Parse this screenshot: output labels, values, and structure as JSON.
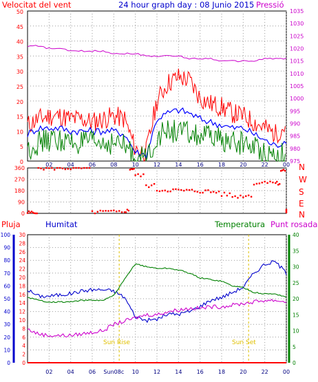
{
  "chart_data": [
    {
      "type": "line",
      "title": "24 hour graph day : 08 Junio 2015",
      "left_label": "Velocitat del vent",
      "right_label": "Pressió",
      "x_ticks": [
        "02",
        "04",
        "06",
        "08",
        "10",
        "12",
        "14",
        "16",
        "18",
        "20",
        "22",
        "00"
      ],
      "y_left_ticks": [
        "0",
        "5",
        "10",
        "15",
        "20",
        "25",
        "30",
        "35",
        "40",
        "45",
        "50"
      ],
      "y_left_range": [
        0,
        50
      ],
      "y_right_ticks": [
        "975",
        "980",
        "985",
        "990",
        "995",
        "1000",
        "1005",
        "1010",
        "1015",
        "1020",
        "1025",
        "1030",
        "1035"
      ],
      "y_right_range": [
        975,
        1035
      ],
      "hours": [
        0,
        1,
        2,
        3,
        4,
        5,
        6,
        7,
        8,
        9,
        10,
        11,
        12,
        13,
        14,
        15,
        16,
        17,
        18,
        19,
        20,
        21,
        22,
        23,
        24
      ],
      "series": [
        {
          "id": "gust",
          "color": "#ff0000",
          "values": [
            12,
            14,
            15,
            15,
            14,
            14,
            13,
            14,
            15,
            14,
            4,
            3,
            20,
            26,
            28,
            27,
            21,
            19,
            18,
            16,
            15,
            13,
            11,
            9,
            12
          ]
        },
        {
          "id": "avg",
          "color": "#0000ff",
          "values": [
            9,
            11,
            11,
            11,
            10,
            10,
            10,
            10,
            10,
            9,
            3,
            2,
            14,
            16,
            17,
            16,
            14,
            13,
            12,
            11,
            11,
            9,
            7,
            5,
            7
          ]
        },
        {
          "id": "min",
          "color": "#008000",
          "values": [
            4,
            6,
            7,
            7,
            6,
            6,
            6,
            6,
            6,
            5,
            1,
            1,
            8,
            10,
            10,
            9,
            8,
            8,
            7,
            6,
            6,
            5,
            3,
            2,
            3
          ]
        },
        {
          "id": "pressure",
          "color": "#cc00cc",
          "values": [
            1021,
            1021,
            1020,
            1020,
            1019,
            1019,
            1019,
            1019,
            1018,
            1018,
            1018,
            1017,
            1017,
            1017,
            1017,
            1016,
            1016,
            1016,
            1015,
            1015,
            1015,
            1015,
            1016,
            1016,
            1016
          ]
        }
      ]
    },
    {
      "type": "scatter",
      "y_left_ticks": [
        "0",
        "90",
        "180",
        "270",
        "360"
      ],
      "y_range": [
        0,
        360
      ],
      "compass_labels": [
        "N",
        "W",
        "S",
        "E",
        "N"
      ],
      "direction_points": [
        [
          0,
          5
        ],
        [
          0.5,
          5
        ],
        [
          1,
          358
        ],
        [
          2,
          358
        ],
        [
          3,
          358
        ],
        [
          4,
          358
        ],
        [
          5,
          358
        ],
        [
          6,
          10
        ],
        [
          7,
          12
        ],
        [
          8,
          10
        ],
        [
          9,
          20
        ],
        [
          9.5,
          355
        ],
        [
          10,
          300
        ],
        [
          11,
          220
        ],
        [
          12,
          185
        ],
        [
          13,
          185
        ],
        [
          14,
          180
        ],
        [
          15,
          178
        ],
        [
          16,
          175
        ],
        [
          17,
          170
        ],
        [
          18,
          150
        ],
        [
          19,
          135
        ],
        [
          20,
          140
        ],
        [
          21,
          240
        ],
        [
          22,
          255
        ],
        [
          23,
          240
        ],
        [
          23.5,
          340
        ],
        [
          24,
          15
        ]
      ]
    },
    {
      "type": "line",
      "labels": {
        "rain": "Pluja",
        "humidity": "Humitat",
        "temperature": "Temperatura",
        "dewpoint": "Punt rosada"
      },
      "rain_ticks": [
        "0",
        "2",
        "4",
        "6",
        "8",
        "10",
        "12",
        "14",
        "16",
        "18",
        "20",
        "22",
        "24",
        "26",
        "28",
        "30"
      ],
      "humidity_ticks": [
        "0",
        "10",
        "20",
        "30",
        "40",
        "50",
        "60",
        "70",
        "80",
        "90",
        "100"
      ],
      "temp_ticks": [
        "0",
        "5",
        "10",
        "15",
        "20",
        "25",
        "30",
        "35",
        "40"
      ],
      "x_ticks": [
        "02",
        "04",
        "06",
        "08",
        "10",
        "12",
        "14",
        "16",
        "18",
        "20",
        "22",
        "00"
      ],
      "x_tick_special": "Sun08c",
      "sunrise_label": "Sun Rise",
      "sunset_label": "Sun Set",
      "sunrise_hour": 8.5,
      "sunset_hour": 20.5,
      "hours": [
        0,
        1,
        2,
        3,
        4,
        5,
        6,
        7,
        8,
        9,
        10,
        11,
        12,
        13,
        14,
        15,
        16,
        17,
        18,
        19,
        20,
        21,
        22,
        23,
        24
      ],
      "series": [
        {
          "id": "humidity",
          "axis": "humidity",
          "color": "#0000cc",
          "values": [
            57,
            52,
            52,
            53,
            54,
            56,
            57,
            57,
            56,
            51,
            36,
            33,
            34,
            38,
            38,
            40,
            44,
            49,
            51,
            55,
            59,
            70,
            77,
            79,
            70
          ]
        },
        {
          "id": "temperature",
          "axis": "temp",
          "color": "#008000",
          "values": [
            20.5,
            19.5,
            19,
            19,
            19,
            19.5,
            19.5,
            19.5,
            21,
            26,
            31,
            30,
            29.5,
            29.5,
            29,
            28,
            26.5,
            26,
            25.5,
            24,
            23.5,
            22,
            21.5,
            21.5,
            20.5
          ]
        },
        {
          "id": "dewpoint",
          "axis": "temp",
          "color": "#cc00cc",
          "values": [
            10.5,
            9,
            8.5,
            8.5,
            8.5,
            9,
            9.5,
            10,
            12,
            13,
            14,
            15,
            15,
            16,
            16.5,
            17,
            17,
            17.5,
            17.5,
            18,
            18.5,
            19,
            19.5,
            19.5,
            19
          ]
        },
        {
          "id": "rain",
          "axis": "rain",
          "color": "#ff0000",
          "values": [
            0,
            0,
            0,
            0,
            0,
            0,
            0,
            0,
            0,
            0,
            0,
            0,
            0,
            0,
            0,
            0,
            0,
            0,
            0,
            0,
            0,
            0,
            0,
            0,
            0
          ]
        }
      ]
    }
  ]
}
